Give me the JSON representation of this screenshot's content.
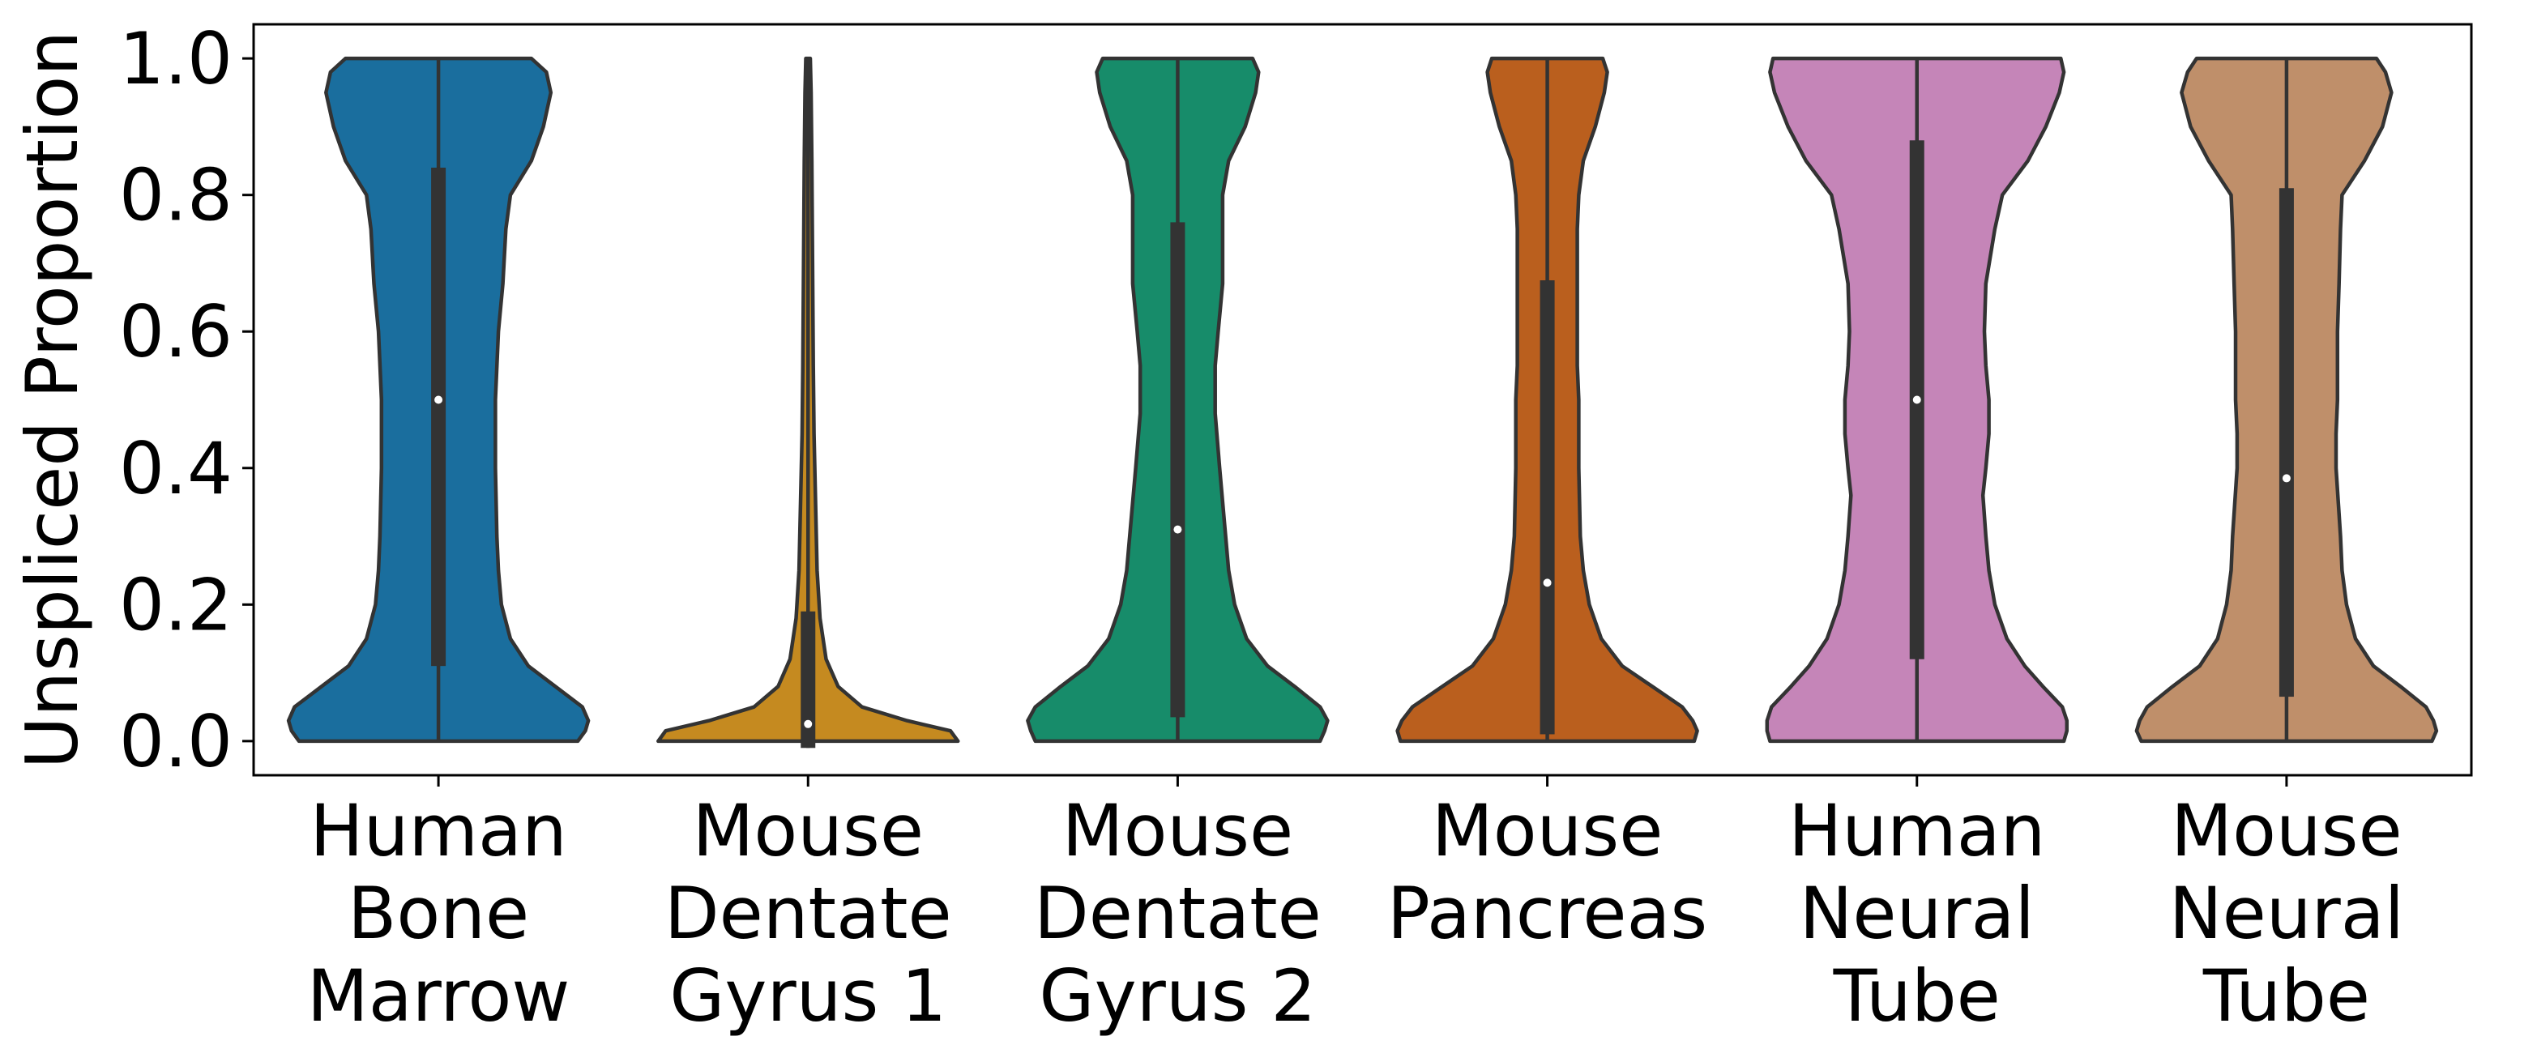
{
  "chart_data": {
    "type": "violin",
    "title": "",
    "xlabel": "",
    "ylabel": "Unspliced Proportion",
    "ylim": [
      -0.05,
      1.05
    ],
    "yticks": [
      "0.0",
      "0.2",
      "0.4",
      "0.6",
      "0.8",
      "1.0"
    ],
    "grid": false,
    "legend": "none",
    "categories": [
      {
        "lines": [
          "Human",
          "Bone",
          "Marrow"
        ]
      },
      {
        "lines": [
          "Mouse",
          "Dentate",
          "Gyrus 1"
        ]
      },
      {
        "lines": [
          "Mouse",
          "Dentate",
          "Gyrus 2"
        ]
      },
      {
        "lines": [
          "Mouse",
          "Pancreas"
        ]
      },
      {
        "lines": [
          "Human",
          "Neural",
          "Tube"
        ]
      },
      {
        "lines": [
          "Mouse",
          "Neural",
          "Tube"
        ]
      }
    ],
    "series": [
      {
        "color": "#1a6e9e",
        "min": 0.0,
        "q1": 0.11,
        "median": 0.5,
        "q3": 0.84,
        "max": 1.0,
        "density": [
          [
            0.0,
            0.93
          ],
          [
            0.015,
            0.98
          ],
          [
            0.03,
            1.0
          ],
          [
            0.05,
            0.96
          ],
          [
            0.08,
            0.78
          ],
          [
            0.11,
            0.6
          ],
          [
            0.15,
            0.48
          ],
          [
            0.2,
            0.42
          ],
          [
            0.25,
            0.4
          ],
          [
            0.3,
            0.39
          ],
          [
            0.4,
            0.38
          ],
          [
            0.5,
            0.38
          ],
          [
            0.6,
            0.4
          ],
          [
            0.67,
            0.43
          ],
          [
            0.75,
            0.45
          ],
          [
            0.8,
            0.48
          ],
          [
            0.85,
            0.62
          ],
          [
            0.9,
            0.7
          ],
          [
            0.95,
            0.75
          ],
          [
            0.98,
            0.72
          ],
          [
            1.0,
            0.62
          ]
        ]
      },
      {
        "color": "#c58a20",
        "min": -0.01,
        "q1": -0.01,
        "median": 0.025,
        "q3": 0.19,
        "max": 1.0,
        "density": [
          [
            0.0,
            1.0
          ],
          [
            0.015,
            0.95
          ],
          [
            0.03,
            0.66
          ],
          [
            0.05,
            0.36
          ],
          [
            0.08,
            0.2
          ],
          [
            0.12,
            0.12
          ],
          [
            0.18,
            0.08
          ],
          [
            0.25,
            0.06
          ],
          [
            0.35,
            0.05
          ],
          [
            0.45,
            0.04
          ],
          [
            0.55,
            0.035
          ],
          [
            0.7,
            0.03
          ],
          [
            0.85,
            0.025
          ],
          [
            0.95,
            0.02
          ],
          [
            1.0,
            0.015
          ]
        ]
      },
      {
        "color": "#178c6a",
        "min": 0.0,
        "q1": 0.035,
        "median": 0.31,
        "q3": 0.76,
        "max": 1.0,
        "density": [
          [
            0.0,
            0.95
          ],
          [
            0.015,
            0.98
          ],
          [
            0.03,
            1.0
          ],
          [
            0.05,
            0.95
          ],
          [
            0.08,
            0.78
          ],
          [
            0.11,
            0.6
          ],
          [
            0.15,
            0.46
          ],
          [
            0.2,
            0.38
          ],
          [
            0.25,
            0.34
          ],
          [
            0.3,
            0.32
          ],
          [
            0.4,
            0.28
          ],
          [
            0.48,
            0.25
          ],
          [
            0.55,
            0.25
          ],
          [
            0.6,
            0.27
          ],
          [
            0.67,
            0.3
          ],
          [
            0.75,
            0.3
          ],
          [
            0.8,
            0.3
          ],
          [
            0.85,
            0.34
          ],
          [
            0.9,
            0.45
          ],
          [
            0.95,
            0.52
          ],
          [
            0.98,
            0.54
          ],
          [
            1.0,
            0.5
          ]
        ]
      },
      {
        "color": "#ba5f1e",
        "min": 0.0,
        "q1": 0.01,
        "median": 0.232,
        "q3": 0.675,
        "max": 1.0,
        "density": [
          [
            0.0,
            0.98
          ],
          [
            0.015,
            1.0
          ],
          [
            0.03,
            0.97
          ],
          [
            0.05,
            0.9
          ],
          [
            0.08,
            0.7
          ],
          [
            0.11,
            0.5
          ],
          [
            0.15,
            0.36
          ],
          [
            0.2,
            0.28
          ],
          [
            0.25,
            0.24
          ],
          [
            0.3,
            0.22
          ],
          [
            0.4,
            0.21
          ],
          [
            0.5,
            0.21
          ],
          [
            0.55,
            0.2
          ],
          [
            0.6,
            0.2
          ],
          [
            0.67,
            0.2
          ],
          [
            0.75,
            0.2
          ],
          [
            0.8,
            0.21
          ],
          [
            0.85,
            0.24
          ],
          [
            0.9,
            0.32
          ],
          [
            0.95,
            0.38
          ],
          [
            0.98,
            0.4
          ],
          [
            1.0,
            0.37
          ]
        ]
      },
      {
        "color": "#c585b8",
        "min": 0.0,
        "q1": 0.12,
        "median": 0.5,
        "q3": 0.88,
        "max": 1.0,
        "density": [
          [
            0.0,
            0.98
          ],
          [
            0.015,
            1.0
          ],
          [
            0.03,
            1.0
          ],
          [
            0.05,
            0.97
          ],
          [
            0.08,
            0.84
          ],
          [
            0.11,
            0.72
          ],
          [
            0.15,
            0.6
          ],
          [
            0.2,
            0.52
          ],
          [
            0.25,
            0.48
          ],
          [
            0.3,
            0.46
          ],
          [
            0.36,
            0.44
          ],
          [
            0.4,
            0.46
          ],
          [
            0.45,
            0.48
          ],
          [
            0.5,
            0.48
          ],
          [
            0.55,
            0.46
          ],
          [
            0.6,
            0.45
          ],
          [
            0.67,
            0.46
          ],
          [
            0.75,
            0.52
          ],
          [
            0.8,
            0.57
          ],
          [
            0.85,
            0.74
          ],
          [
            0.9,
            0.86
          ],
          [
            0.95,
            0.95
          ],
          [
            0.98,
            0.98
          ],
          [
            1.0,
            0.96
          ]
        ]
      },
      {
        "color": "#bf8f6a",
        "min": 0.0,
        "q1": 0.065,
        "median": 0.385,
        "q3": 0.81,
        "max": 1.0,
        "density": [
          [
            0.0,
            0.97
          ],
          [
            0.015,
            1.0
          ],
          [
            0.03,
            0.98
          ],
          [
            0.05,
            0.93
          ],
          [
            0.08,
            0.76
          ],
          [
            0.11,
            0.58
          ],
          [
            0.15,
            0.46
          ],
          [
            0.2,
            0.4
          ],
          [
            0.25,
            0.37
          ],
          [
            0.3,
            0.36
          ],
          [
            0.4,
            0.33
          ],
          [
            0.45,
            0.33
          ],
          [
            0.5,
            0.34
          ],
          [
            0.55,
            0.34
          ],
          [
            0.6,
            0.34
          ],
          [
            0.67,
            0.35
          ],
          [
            0.75,
            0.36
          ],
          [
            0.8,
            0.37
          ],
          [
            0.85,
            0.52
          ],
          [
            0.9,
            0.64
          ],
          [
            0.95,
            0.7
          ],
          [
            0.98,
            0.66
          ],
          [
            1.0,
            0.6
          ]
        ]
      }
    ]
  }
}
